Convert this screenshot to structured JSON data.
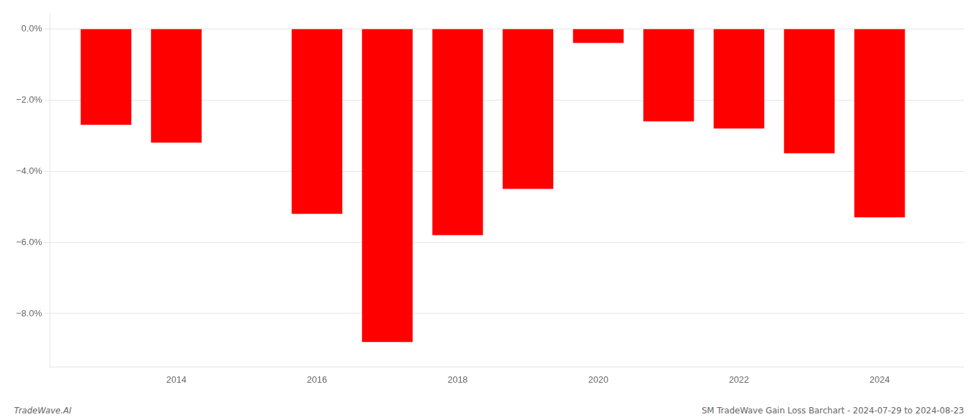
{
  "chart_data": {
    "type": "bar",
    "x": [
      2013,
      2014,
      2016,
      2017,
      2018,
      2019,
      2020,
      2021,
      2022,
      2023,
      2024
    ],
    "values": [
      -2.7,
      -3.2,
      -5.2,
      -8.8,
      -5.8,
      -4.5,
      -0.4,
      -2.6,
      -2.8,
      -3.5,
      -5.3
    ],
    "color": "#ff0000",
    "xlim": [
      2012.2,
      2025.2
    ],
    "xticks": [
      2014,
      2016,
      2018,
      2020,
      2022,
      2024
    ],
    "ylim": [
      -9.5,
      0.4
    ],
    "yticks": [
      {
        "value": 0.0,
        "label": "0.0%"
      },
      {
        "value": -2.0,
        "label": "−2.0%"
      },
      {
        "value": -4.0,
        "label": "−4.0%"
      },
      {
        "value": -6.0,
        "label": "−6.0%"
      },
      {
        "value": -8.0,
        "label": "−8.0%"
      }
    ],
    "grid": true,
    "annotations": [
      "TradeWave.AI",
      "SM TradeWave Gain Loss Barchart - 2024-07-29 to 2024-08-23"
    ]
  }
}
